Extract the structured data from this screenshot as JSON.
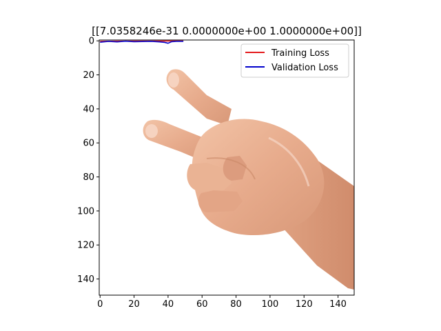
{
  "chart_data": {
    "type": "line",
    "title": "[[7.0358246e-31 0.0000000e+00 1.0000000e+00]]",
    "xlabel": "",
    "ylabel": "",
    "xlim": [
      -0.5,
      149.5
    ],
    "ylim": [
      149.5,
      -0.5
    ],
    "y_inverted": true,
    "grid": false,
    "background_image": "photo of a hand making a peace / scissors gesture on white background",
    "x_ticks": [
      0,
      20,
      40,
      60,
      80,
      100,
      120,
      140
    ],
    "y_ticks": [
      0,
      20,
      40,
      60,
      80,
      100,
      120,
      140
    ],
    "legend": {
      "placement": "top-right",
      "entries": [
        {
          "label": "Training Loss",
          "color": "#e41a1c"
        },
        {
          "label": "Validation Loss",
          "color": "#0000cc"
        }
      ]
    },
    "series": [
      {
        "name": "Training Loss",
        "color": "#e41a1c",
        "x": [
          0,
          10,
          20,
          30,
          40,
          49
        ],
        "y": [
          0.3,
          0.2,
          0.15,
          0.12,
          0.1,
          0.1
        ]
      },
      {
        "name": "Validation Loss",
        "color": "#0000cc",
        "x": [
          0,
          5,
          10,
          15,
          20,
          25,
          30,
          35,
          38,
          40,
          42,
          45,
          49
        ],
        "y": [
          0.8,
          0.3,
          0.6,
          0.2,
          0.5,
          0.4,
          0.3,
          0.6,
          0.9,
          1.4,
          0.5,
          0.3,
          0.3
        ]
      }
    ]
  }
}
